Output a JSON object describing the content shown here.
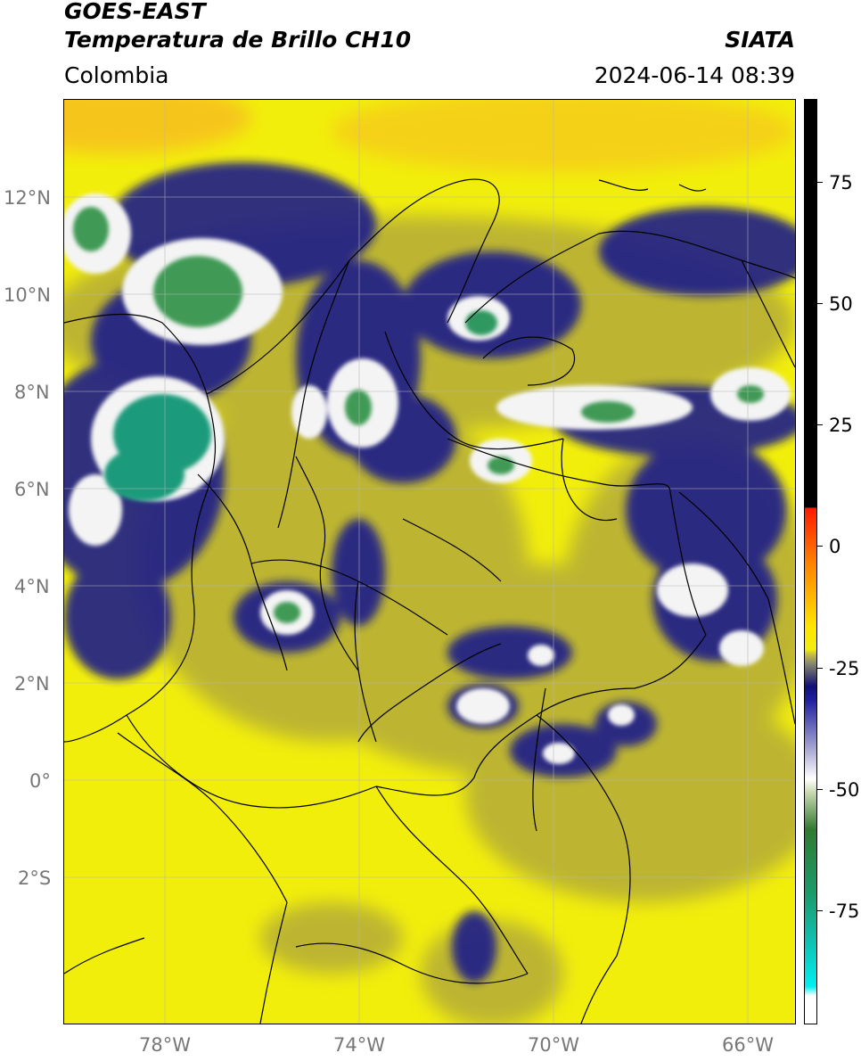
{
  "header": {
    "title_line1": "GOES-EAST",
    "title_line2": "Temperatura de Brillo CH10",
    "organization": "SIATA",
    "region": "Colombia",
    "datetime": "2024-06-14 08:39"
  },
  "map": {
    "lat_labels": [
      {
        "label": "12°N",
        "lat": 12
      },
      {
        "label": "10°N",
        "lat": 10
      },
      {
        "label": "8°N",
        "lat": 8
      },
      {
        "label": "6°N",
        "lat": 6
      },
      {
        "label": "4°N",
        "lat": 4
      },
      {
        "label": "2°N",
        "lat": 2
      },
      {
        "label": "0°",
        "lat": 0
      },
      {
        "label": "2°S",
        "lat": -2
      }
    ],
    "lon_labels": [
      {
        "label": "78°W",
        "lon": -78
      },
      {
        "label": "74°W",
        "lon": -74
      },
      {
        "label": "70°W",
        "lon": -70
      },
      {
        "label": "66°W",
        "lon": -66
      }
    ],
    "extent": {
      "lon_min": -80,
      "lon_max": -65,
      "lat_min": -5,
      "lat_max": 14
    },
    "colors": {
      "warm_background": "#f2ee0c",
      "olive": "#b4ac38",
      "navy": "#1a1f8a",
      "white": "#f4f4f4",
      "green": "#3f9a55",
      "teal": "#1f9b7c",
      "orange": "#f7b61c"
    }
  },
  "colorbar": {
    "ticks": [
      {
        "label": "75",
        "value": 75
      },
      {
        "label": "50",
        "value": 50
      },
      {
        "label": "25",
        "value": 25
      },
      {
        "label": "0",
        "value": 0
      },
      {
        "label": "-25",
        "value": -25
      },
      {
        "label": "-50",
        "value": -50
      },
      {
        "label": "-75",
        "value": -75
      }
    ],
    "range": [
      -100,
      90
    ]
  }
}
